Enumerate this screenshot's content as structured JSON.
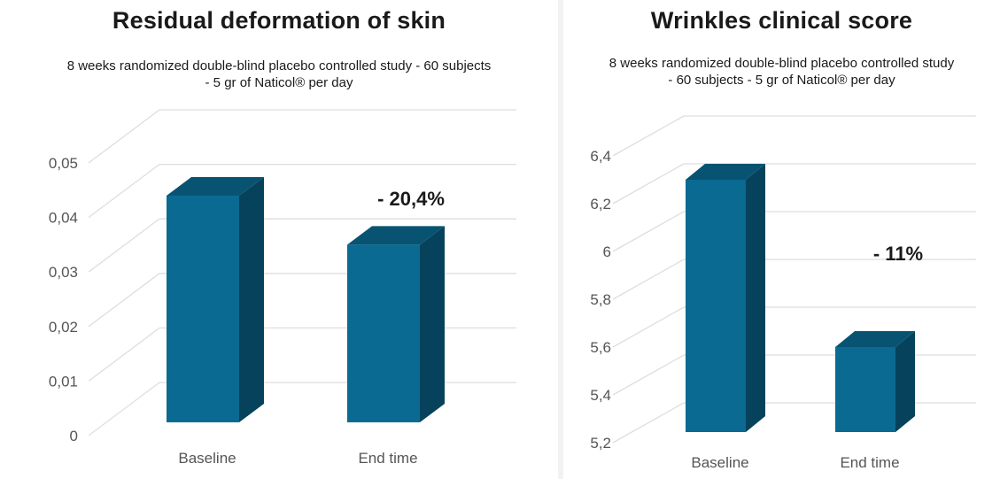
{
  "chart_data": [
    {
      "type": "bar",
      "title": "Residual deformation of skin",
      "subtitle": "8 weeks randomized double-blind placebo controlled study - 60 subjects - 5 gr of Naticol® per day",
      "subtitle_lines": [
        "8 weeks randomized double-blind placebo controlled study - 60 subjects",
        "- 5 gr of Naticol® per day"
      ],
      "categories": [
        "Baseline",
        "End time"
      ],
      "values": [
        0.044,
        0.035
      ],
      "ylim": [
        0,
        0.05
      ],
      "yticks": [
        "0",
        "0,01",
        "0,02",
        "0,03",
        "0,04",
        "0,05"
      ],
      "annotation": "- 20,4%",
      "grid": true,
      "bar_color": "#0a6a92"
    },
    {
      "type": "bar",
      "title": "Wrinkles clinical score",
      "subtitle": "8 weeks randomized double-blind placebo controlled study - 60 subjects - 5 gr of Naticol® per day",
      "subtitle_lines": [
        "8 weeks randomized double-blind placebo controlled study",
        "- 60 subjects - 5 gr of Naticol® per day"
      ],
      "categories": [
        "Baseline",
        "End time"
      ],
      "values": [
        6.3,
        5.6
      ],
      "ylim": [
        5.2,
        6.4
      ],
      "yticks": [
        "5,2",
        "5,4",
        "5,6",
        "5,8",
        "6",
        "6,2",
        "6,4"
      ],
      "annotation": "- 11%",
      "grid": true,
      "bar_color": "#0a6a92"
    }
  ]
}
